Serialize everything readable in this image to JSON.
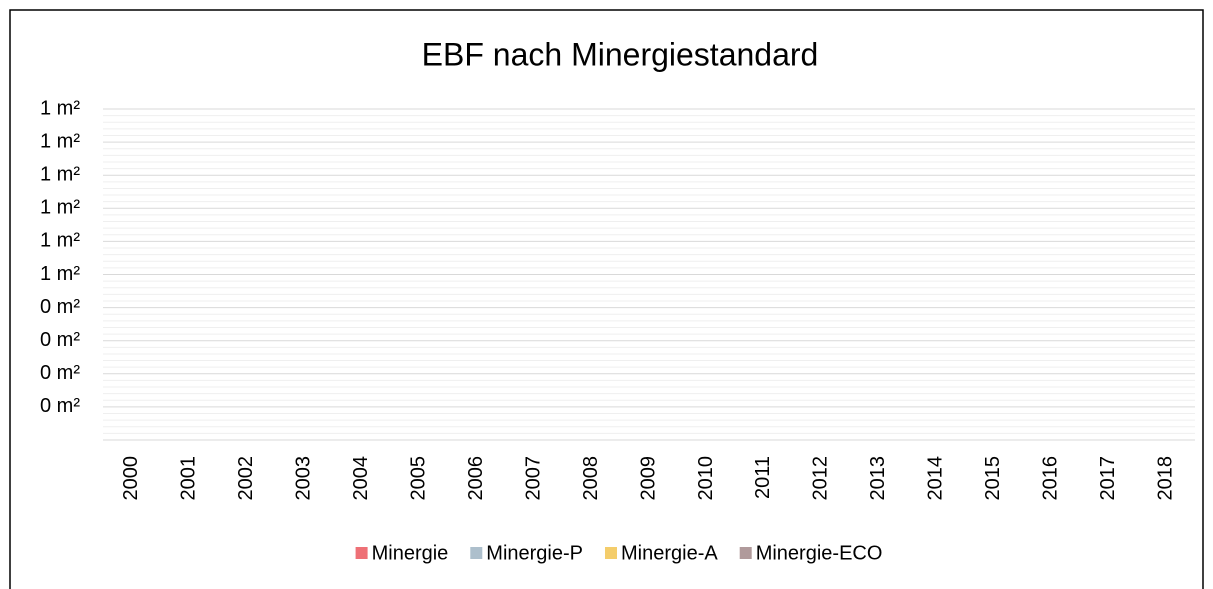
{
  "chart_data": {
    "type": "stacked_bar",
    "title": "EBF nach Minergiestandard",
    "categories": [
      "2000",
      "2001",
      "2002",
      "2003",
      "2004",
      "2005",
      "2006",
      "2007",
      "2008",
      "2009",
      "2010",
      "2011",
      "2012",
      "2013",
      "2014",
      "2015",
      "2016",
      "2017",
      "2018"
    ],
    "series": [
      {
        "name": "Minergie",
        "color": "#ee7076",
        "values": [
          null,
          null,
          null,
          null,
          null,
          null,
          null,
          null,
          null,
          null,
          null,
          null,
          null,
          null,
          null,
          null,
          null,
          null,
          null
        ]
      },
      {
        "name": "Minergie-P",
        "color": "#adbfcc",
        "values": [
          null,
          null,
          null,
          null,
          null,
          null,
          null,
          null,
          null,
          null,
          null,
          null,
          null,
          null,
          null,
          null,
          null,
          null,
          null
        ]
      },
      {
        "name": "Minergie-A",
        "color": "#f4cd6b",
        "values": [
          null,
          null,
          null,
          null,
          null,
          null,
          null,
          null,
          null,
          null,
          null,
          null,
          null,
          null,
          null,
          null,
          null,
          null,
          null
        ]
      },
      {
        "name": "Minergie-ECO",
        "color": "#b09a9b",
        "values": [
          null,
          null,
          null,
          null,
          null,
          null,
          null,
          null,
          null,
          null,
          null,
          null,
          null,
          null,
          null,
          null,
          null,
          null,
          null
        ]
      }
    ],
    "ylim": [
      0,
      1
    ],
    "yticks": [
      {
        "value": 0.1,
        "label": "0 m²"
      },
      {
        "value": 0.2,
        "label": "0 m²"
      },
      {
        "value": 0.3,
        "label": "0 m²"
      },
      {
        "value": 0.4,
        "label": "0 m²"
      },
      {
        "value": 0.5,
        "label": "1 m²"
      },
      {
        "value": 0.6,
        "label": "1 m²"
      },
      {
        "value": 0.7,
        "label": "1 m²"
      },
      {
        "value": 0.8,
        "label": "1 m²"
      },
      {
        "value": 0.9,
        "label": "1 m²"
      },
      {
        "value": 1.0,
        "label": "1 m²"
      }
    ],
    "grid": true,
    "minor_grid": true,
    "legend": "bottom"
  }
}
